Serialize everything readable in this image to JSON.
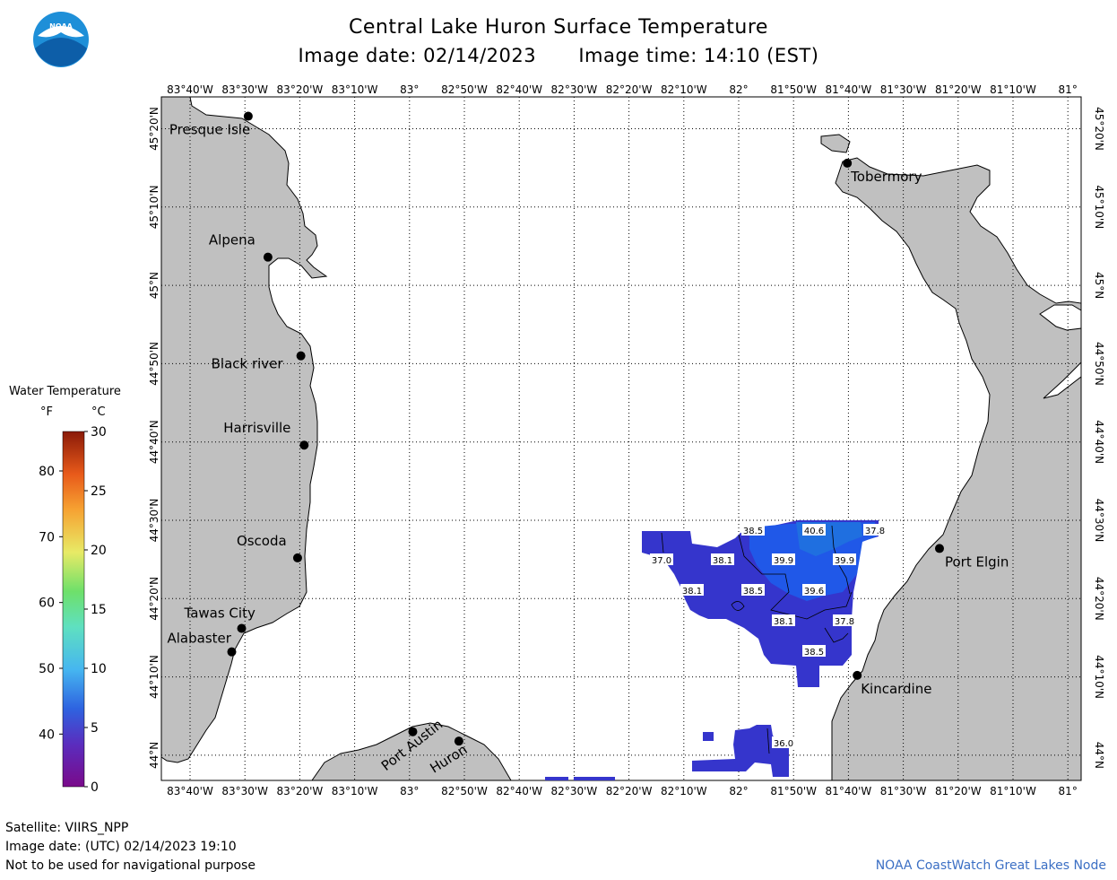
{
  "header": {
    "title": "Central Lake Huron Surface Temperature",
    "image_date": "Image date: 02/14/2023",
    "image_time": "Image time: 14:10 (EST)"
  },
  "logo": {
    "text": "NOAA"
  },
  "map": {
    "lon_labels": [
      "83°40'W",
      "83°30'W",
      "83°20'W",
      "83°10'W",
      "83°",
      "82°50'W",
      "82°40'W",
      "82°30'W",
      "82°20'W",
      "82°10'W",
      "82°",
      "81°50'W",
      "81°40'W",
      "81°30'W",
      "81°20'W",
      "81°10'W",
      "81°"
    ],
    "lat_labels": [
      "45°20'N",
      "45°10'N",
      "45°N",
      "44°50'N",
      "44°40'N",
      "44°30'N",
      "44°20'N",
      "44°10'N",
      "44°N"
    ],
    "cities": [
      {
        "name": "Presque Isle",
        "lon": -83.49,
        "lat": 45.36
      },
      {
        "name": "Alpena",
        "lon": -83.43,
        "lat": 45.06
      },
      {
        "name": "Black river",
        "lon": -83.33,
        "lat": 44.85
      },
      {
        "name": "Harrisville",
        "lon": -83.32,
        "lat": 44.66
      },
      {
        "name": "Oscoda",
        "lon": -83.34,
        "lat": 44.42
      },
      {
        "name": "Tawas City",
        "lon": -83.51,
        "lat": 44.27
      },
      {
        "name": "Alabaster",
        "lon": -83.54,
        "lat": 44.22
      },
      {
        "name": "Port Austin",
        "lon": -82.99,
        "lat": 44.05
      },
      {
        "name": "Huron",
        "lon": -82.85,
        "lat": 44.03
      },
      {
        "name": "Tobermory",
        "lon": -81.67,
        "lat": 45.26
      },
      {
        "name": "Port Elgin",
        "lon": -81.39,
        "lat": 44.44
      },
      {
        "name": "Kincardine",
        "lon": -81.64,
        "lat": 44.17
      }
    ],
    "temperature_labels": [
      "38.5",
      "40.6",
      "37.8",
      "37.0",
      "38.1",
      "39.9",
      "39.9",
      "38.1",
      "38.5",
      "39.6",
      "38.1",
      "37.8",
      "38.5",
      "36.0"
    ]
  },
  "legend": {
    "title": "Water Temperature",
    "unit_f": "°F",
    "unit_c": "°C",
    "f_ticks": [
      "80",
      "70",
      "60",
      "50",
      "40"
    ],
    "c_ticks": [
      "30",
      "25",
      "20",
      "15",
      "10",
      "5",
      "0"
    ]
  },
  "footer": {
    "satellite": "Satellite: VIIRS_NPP",
    "utc_date": "Image date: (UTC) 02/14/2023  19:10",
    "disclaimer": "Not to be used for navigational purpose",
    "credit": "NOAA CoastWatch Great Lakes Node"
  },
  "colors": {
    "land": "#c0c0c0",
    "water_cold": "#3333cc",
    "water_warm": "#1f6fe0",
    "credit": "#3b6fc4"
  }
}
